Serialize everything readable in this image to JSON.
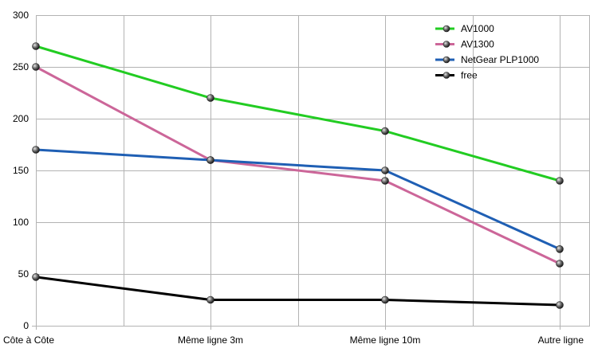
{
  "chart_data": {
    "type": "line",
    "categories": [
      "Côte à Côte",
      "Même ligne 3m",
      "Même ligne 10m",
      "Autre ligne"
    ],
    "ylim": [
      0,
      300
    ],
    "yticks": [
      0,
      50,
      100,
      150,
      200,
      250,
      300
    ],
    "grid": true,
    "legend_position": "top-right",
    "series": [
      {
        "name": "AV1000",
        "color": "#22cc22",
        "values": [
          270,
          220,
          188,
          140
        ]
      },
      {
        "name": "AV1300",
        "color": "#cc6699",
        "values": [
          250,
          160,
          140,
          60
        ]
      },
      {
        "name": "NetGear PLP1000",
        "color": "#1f5fb4",
        "values": [
          170,
          160,
          150,
          74
        ]
      },
      {
        "name": "free",
        "color": "#000000",
        "values": [
          47,
          25,
          25,
          20
        ]
      }
    ]
  }
}
